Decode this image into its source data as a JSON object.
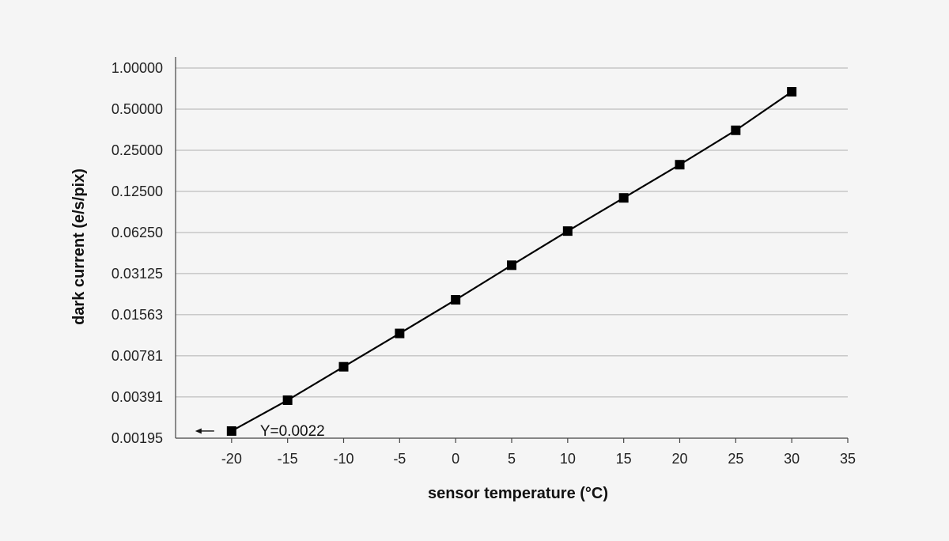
{
  "chart_data": {
    "type": "line",
    "title": "",
    "xlabel": "sensor temperature (°C)",
    "ylabel": "dark current (e/s/pix)",
    "x_ticks": [
      -20,
      -15,
      -10,
      -5,
      0,
      5,
      10,
      15,
      20,
      25,
      30,
      35
    ],
    "x_tick_labels": [
      "-20",
      "-15",
      "-10",
      "-5",
      "0",
      "5",
      "10",
      "15",
      "20",
      "25",
      "30",
      "35"
    ],
    "xlim": [
      -25,
      35
    ],
    "y_scale": "log2",
    "y_ticks": [
      0.00195,
      0.00391,
      0.00781,
      0.01563,
      0.03125,
      0.0625,
      0.125,
      0.25,
      0.5,
      1.0
    ],
    "y_tick_labels": [
      "0.00195",
      "0.00391",
      "0.00781",
      "0.01563",
      "0.03125",
      "0.06250",
      "0.12500",
      "0.25000",
      "0.50000",
      "1.00000"
    ],
    "ylim": [
      0.00195,
      1.0
    ],
    "grid": "horizontal",
    "legend": "none",
    "series": [
      {
        "x": [
          -20,
          -15,
          -10,
          -5,
          0,
          5,
          10,
          15,
          20,
          25,
          30
        ],
        "y": [
          0.0022,
          0.0037,
          0.0065,
          0.0114,
          0.0201,
          0.036,
          0.064,
          0.112,
          0.196,
          0.35,
          0.67
        ],
        "marker": "square",
        "color": "#000000"
      }
    ],
    "annotations": [
      {
        "text": "Y=0.0022",
        "x": -20,
        "y": 0.0022,
        "arrow": "left"
      }
    ]
  },
  "colors": {
    "background": "#f5f5f5",
    "grid": "#b0b0b0",
    "axis": "#444444",
    "series": "#000000"
  }
}
